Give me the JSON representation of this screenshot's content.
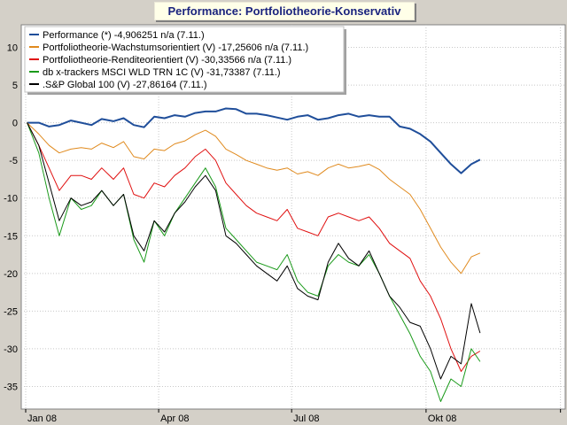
{
  "chart_data": {
    "type": "line",
    "title": "Performance: Portfoliotheorie-Konservativ",
    "xlabel": "",
    "ylabel": "",
    "ylim": [
      -38,
      13
    ],
    "yticks": [
      10,
      5,
      0,
      -5,
      -10,
      -15,
      -20,
      -25,
      -30,
      -35
    ],
    "xlim": [
      "2008-01-01",
      "2008-12-31"
    ],
    "xticks": [
      {
        "label": "Jan 08",
        "date": "2008-01-01"
      },
      {
        "label": "Apr 08",
        "date": "2008-04-01"
      },
      {
        "label": "Jul 08",
        "date": "2008-07-01"
      },
      {
        "label": "Okt 08",
        "date": "2008-10-01"
      },
      {
        "label": "",
        "date": "2009-01-01"
      }
    ],
    "grid": true,
    "legend_position": "top-left",
    "x": [
      "2008-01-02",
      "2008-01-10",
      "2008-01-17",
      "2008-01-24",
      "2008-02-01",
      "2008-02-08",
      "2008-02-15",
      "2008-02-22",
      "2008-03-01",
      "2008-03-08",
      "2008-03-15",
      "2008-03-22",
      "2008-03-29",
      "2008-04-05",
      "2008-04-12",
      "2008-04-19",
      "2008-04-26",
      "2008-05-03",
      "2008-05-10",
      "2008-05-17",
      "2008-05-24",
      "2008-05-31",
      "2008-06-07",
      "2008-06-14",
      "2008-06-21",
      "2008-06-28",
      "2008-07-05",
      "2008-07-12",
      "2008-07-19",
      "2008-07-26",
      "2008-08-02",
      "2008-08-09",
      "2008-08-16",
      "2008-08-23",
      "2008-08-30",
      "2008-09-06",
      "2008-09-13",
      "2008-09-20",
      "2008-09-27",
      "2008-10-04",
      "2008-10-11",
      "2008-10-18",
      "2008-10-25",
      "2008-11-01",
      "2008-11-07"
    ],
    "series": [
      {
        "name": "Performance (*) -4,906251 n/a (7.11.)",
        "color": "#1f4e9a",
        "width": 2,
        "values": [
          0,
          0,
          -0.5,
          -0.3,
          0.3,
          0,
          -0.3,
          0.5,
          0.2,
          0.6,
          -0.3,
          -0.6,
          0.8,
          0.6,
          1.0,
          0.8,
          1.3,
          1.5,
          1.5,
          1.9,
          1.8,
          1.2,
          1.2,
          1.0,
          0.7,
          0.4,
          0.8,
          1.0,
          0.4,
          0.6,
          1.0,
          1.2,
          0.8,
          1.0,
          0.8,
          0.8,
          -0.5,
          -0.8,
          -1.5,
          -2.5,
          -4.0,
          -5.5,
          -6.7,
          -5.5,
          -4.9
        ]
      },
      {
        "name": "Portfoliotheorie-Wachstumsorientiert (V) -17,25606 n/a (7.11.)",
        "color": "#e08a1e",
        "width": 1,
        "values": [
          0,
          -1.5,
          -3,
          -4,
          -3.5,
          -3.3,
          -3.5,
          -2.7,
          -3.3,
          -2.5,
          -4.5,
          -4.8,
          -3.5,
          -3.7,
          -2.8,
          -2.4,
          -1.6,
          -1.0,
          -1.8,
          -3.5,
          -4.2,
          -5.0,
          -5.5,
          -6.0,
          -6.3,
          -6.0,
          -6.8,
          -6.5,
          -7.0,
          -6.0,
          -5.5,
          -6.0,
          -5.8,
          -5.5,
          -6.2,
          -7.5,
          -8.5,
          -9.5,
          -11.5,
          -14.0,
          -16.5,
          -18.5,
          -20.0,
          -17.8,
          -17.3
        ]
      },
      {
        "name": "Portfoliotheorie-Renditeorientiert (V) -30,33566 n/a (7.11.)",
        "color": "#e01010",
        "width": 1,
        "values": [
          0,
          -3,
          -6,
          -9,
          -7,
          -7,
          -7.5,
          -6,
          -7.5,
          -6,
          -9.5,
          -10,
          -8,
          -8.5,
          -7,
          -6,
          -4.5,
          -3.5,
          -5,
          -8,
          -9.5,
          -11,
          -12,
          -12.5,
          -13,
          -11.5,
          -14,
          -14.5,
          -15,
          -12.5,
          -12,
          -12.5,
          -13,
          -12.5,
          -14,
          -16,
          -17,
          -18,
          -21,
          -23,
          -26,
          -30,
          -33,
          -31,
          -30.3
        ]
      },
      {
        "name": "db x-trackers MSCI WLD TRN 1C (V) -31,73387 (7.11.)",
        "color": "#1a9a1a",
        "width": 1,
        "values": [
          0,
          -4,
          -10,
          -15,
          -10,
          -11.5,
          -11,
          -9,
          -11,
          -9.5,
          -15.5,
          -18.5,
          -13,
          -15,
          -12,
          -10,
          -8,
          -6,
          -8.5,
          -14,
          -15.5,
          -17,
          -18.5,
          -19,
          -19.5,
          -17.5,
          -21,
          -22.5,
          -23,
          -19,
          -17.5,
          -18.5,
          -19,
          -17.5,
          -20,
          -23,
          -25.5,
          -28,
          -31,
          -33,
          -37,
          -34,
          -35,
          -30,
          -31.7
        ]
      },
      {
        "name": ".S&P Global 100 (V) -27,86164 (7.11.)",
        "color": "#000000",
        "width": 1,
        "values": [
          0,
          -3,
          -8,
          -13,
          -10,
          -11,
          -10.5,
          -9,
          -11,
          -9.5,
          -15,
          -17,
          -13,
          -14.5,
          -12,
          -10.5,
          -8.5,
          -7,
          -9,
          -15,
          -16,
          -17.5,
          -19,
          -20,
          -21,
          -19,
          -22,
          -23,
          -23.5,
          -18.5,
          -16,
          -18,
          -19,
          -17,
          -20,
          -23,
          -24.5,
          -26.5,
          -27,
          -30,
          -34,
          -31,
          -32,
          -24,
          -27.9
        ]
      }
    ]
  }
}
